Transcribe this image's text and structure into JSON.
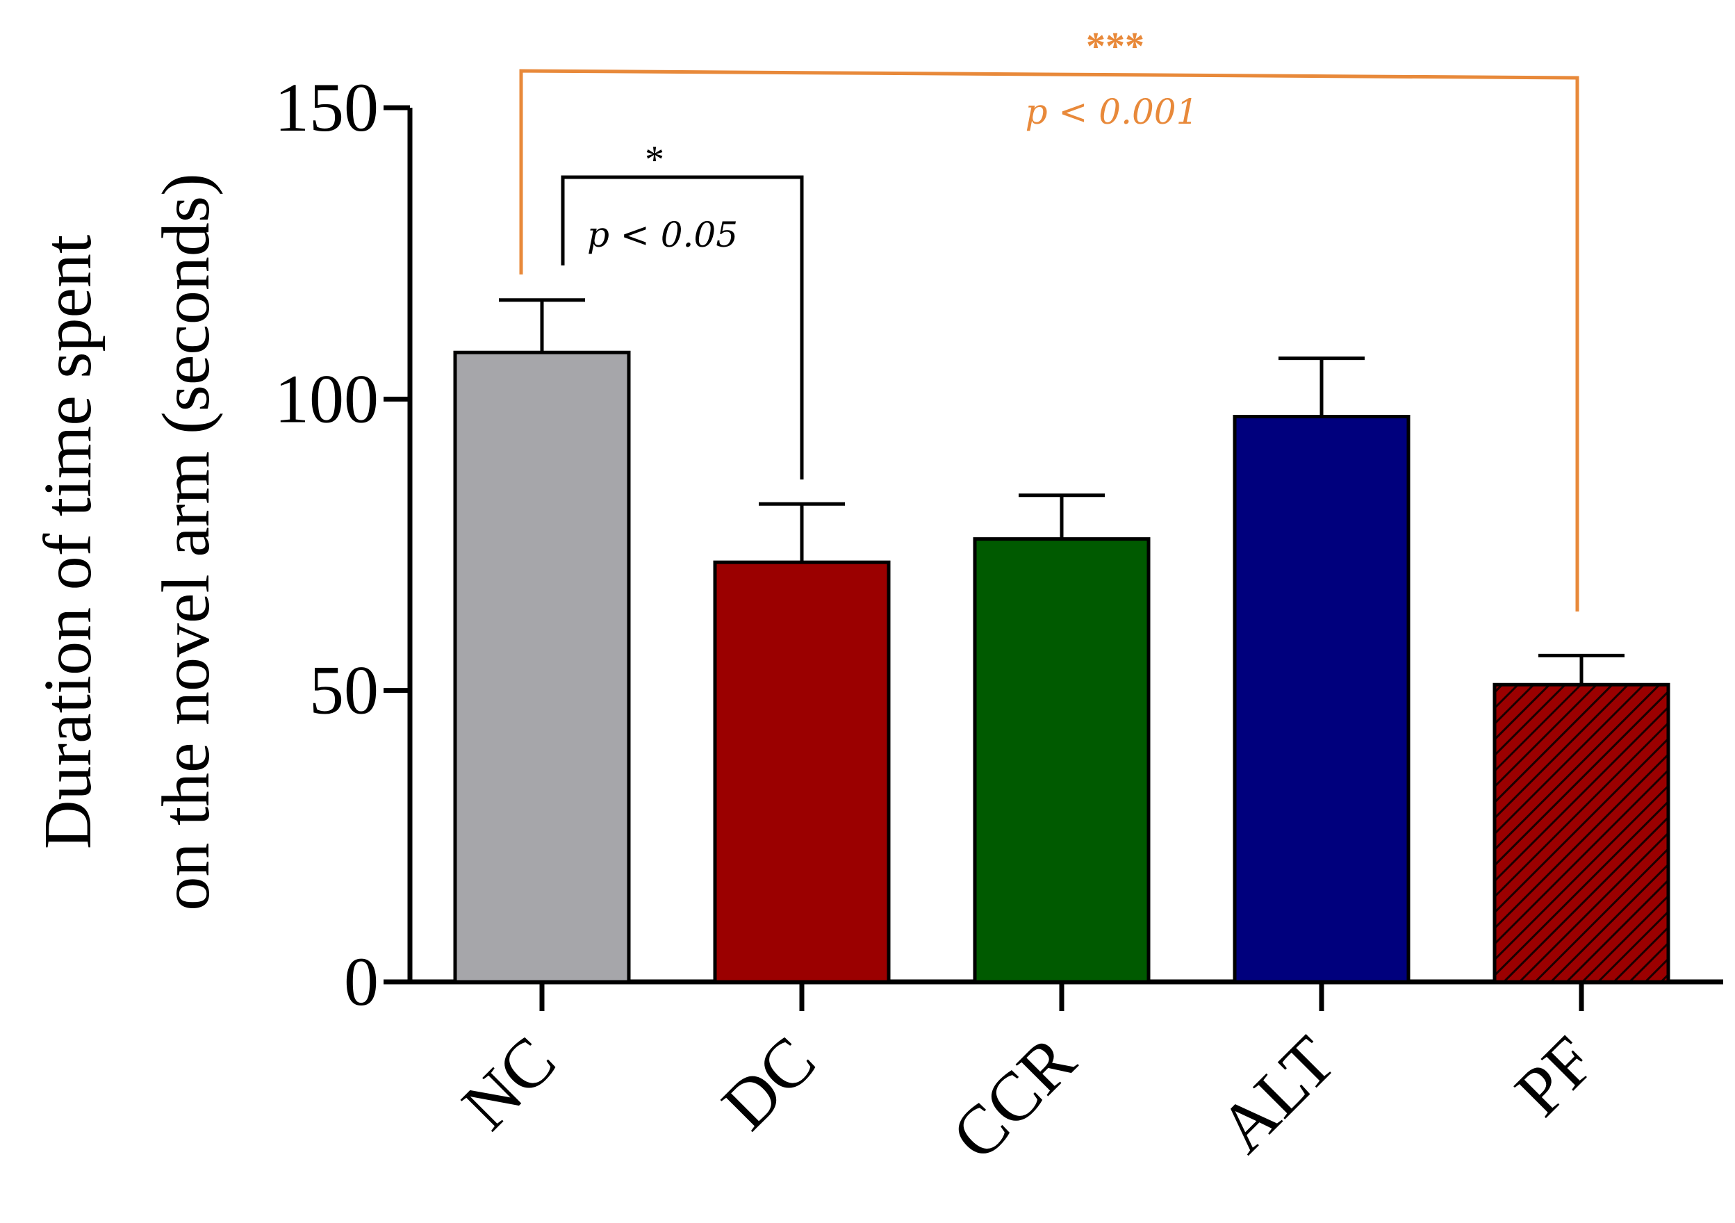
{
  "chart_data": {
    "type": "bar",
    "ylabel_line1": "Duration of time spent",
    "ylabel_line2": "on the novel arm (seconds)",
    "xlabel": "",
    "ylim": [
      0,
      150
    ],
    "yticks": [
      0,
      50,
      100,
      150
    ],
    "categories": [
      "NC",
      "DC",
      "CCR",
      "ALT",
      "PF"
    ],
    "values": [
      108,
      72,
      76,
      97,
      51
    ],
    "errors": [
      9,
      10,
      7.5,
      10,
      5
    ],
    "colors": [
      "#a6a6aa",
      "#9b0000",
      "#005a00",
      "#00007d",
      "#9b0000"
    ],
    "patterns": [
      "solid",
      "solid",
      "solid",
      "solid",
      "hatch"
    ],
    "annotations": [
      {
        "from": "NC",
        "to": "DC",
        "stars": "*",
        "ptext": "p < 0.05",
        "color": "#000000"
      },
      {
        "from": "NC",
        "to": "PF",
        "stars": "***",
        "ptext": "p < 0.001",
        "color": "#e8893a"
      }
    ]
  }
}
